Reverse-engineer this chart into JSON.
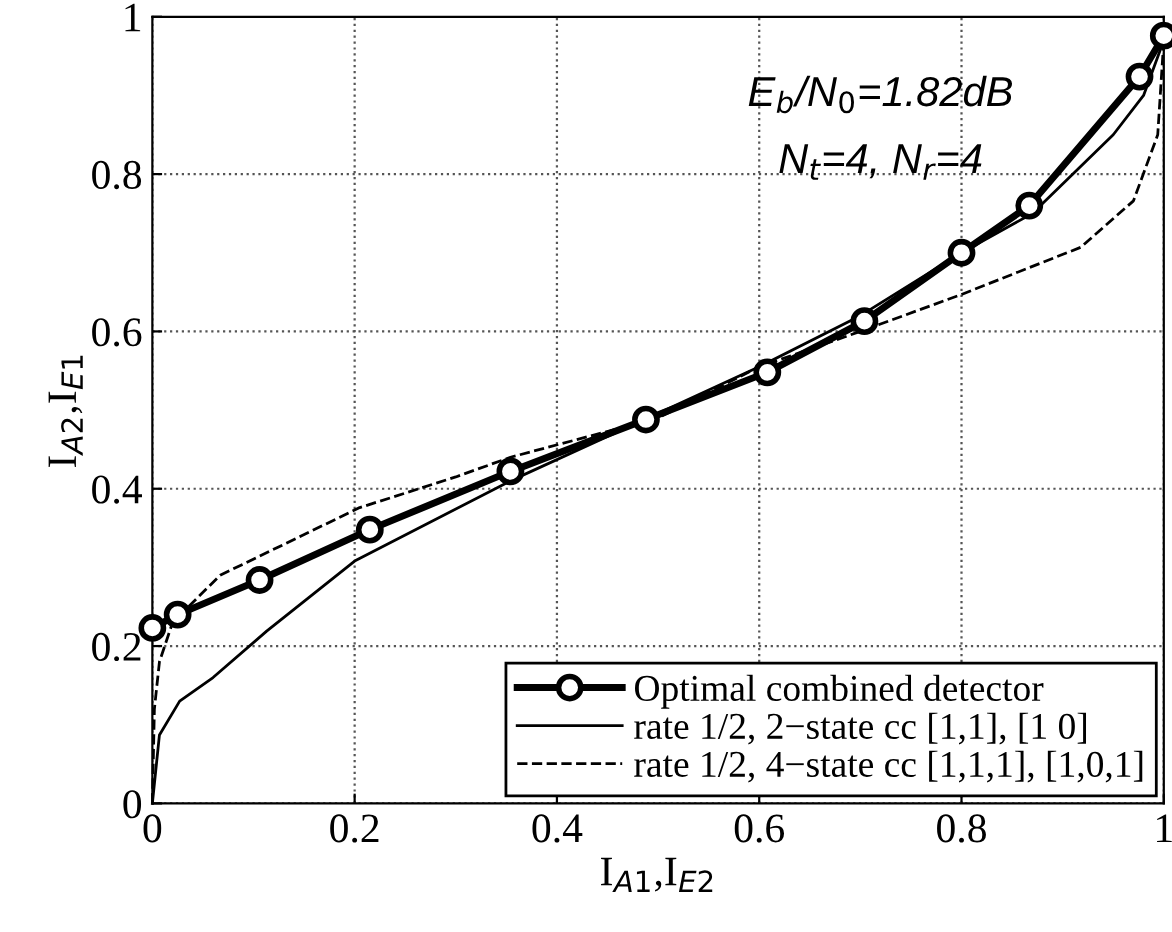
{
  "chart_data": {
    "type": "line",
    "xlabel": "I$_{A1}$,I$_{E2}$",
    "ylabel": "I$_{A2}$,I$_{E1}$",
    "xlim": [
      0,
      1
    ],
    "ylim": [
      0,
      1
    ],
    "xticks": [
      0,
      0.2,
      0.4,
      0.6,
      0.8,
      1
    ],
    "yticks": [
      0,
      0.2,
      0.4,
      0.6,
      0.8,
      1
    ],
    "grid": true,
    "legend": "bottom right",
    "annotations": [
      "E$_{b}$/N$_{0}$=1.82dB",
      "N$_{t}$=4, N$_{r}$=4"
    ],
    "series": [
      {
        "name": "Optimal combined detector",
        "color": "#000000",
        "marker": "circle",
        "line_style": "solid",
        "x": [
          0,
          0.025,
          0.106,
          0.215,
          0.354,
          0.488,
          0.608,
          0.704,
          0.8,
          0.867,
          0.976,
          1.0
        ],
        "values": [
          0.223,
          0.24,
          0.284,
          0.348,
          0.422,
          0.488,
          0.548,
          0.613,
          0.7,
          0.76,
          0.924,
          0.976
        ]
      },
      {
        "name": "rate 1/2, 2−state cc [1,1], [1 0]",
        "color": "#000000",
        "line_style": "solid",
        "x": [
          0,
          0.007,
          0.027,
          0.06,
          0.113,
          0.2,
          0.354,
          0.49,
          0.6,
          0.7,
          0.8,
          0.87,
          0.95,
          0.98,
          1.0
        ],
        "values": [
          0,
          0.087,
          0.13,
          0.16,
          0.219,
          0.308,
          0.41,
          0.49,
          0.555,
          0.62,
          0.7,
          0.75,
          0.85,
          0.9,
          0.97
        ]
      },
      {
        "name": "rate 1/2, 4−state cc [1,1,1], [1,0,1]",
        "color": "#000000",
        "line_style": "dashed",
        "x": [
          0,
          0.002,
          0.007,
          0.02,
          0.067,
          0.205,
          0.3,
          0.354,
          0.5,
          0.6,
          0.7,
          0.8,
          0.918,
          0.97,
          0.994,
          1.0
        ],
        "values": [
          0,
          0.12,
          0.18,
          0.23,
          0.29,
          0.376,
          0.415,
          0.44,
          0.49,
          0.555,
          0.6,
          0.647,
          0.707,
          0.766,
          0.85,
          0.97
        ]
      }
    ]
  }
}
